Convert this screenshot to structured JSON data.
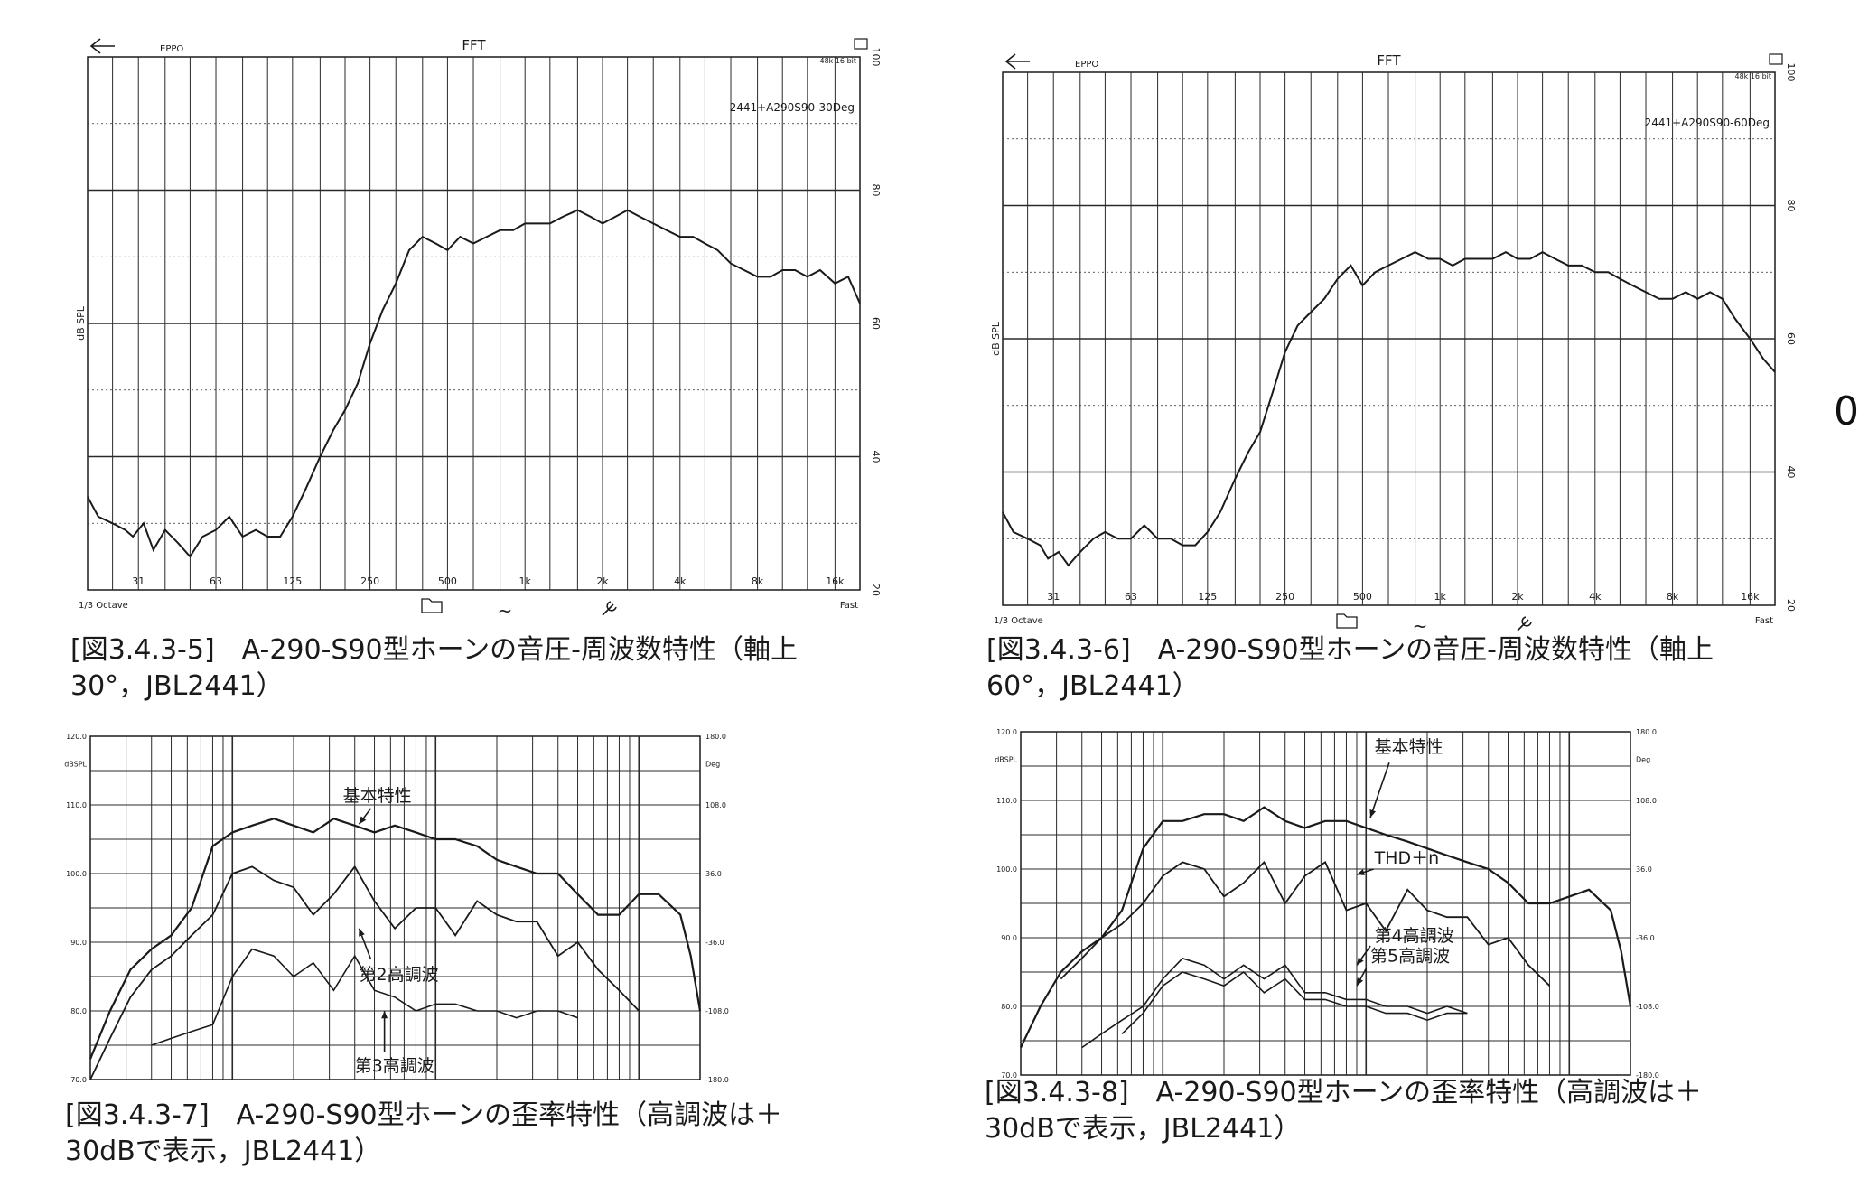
{
  "colors": {
    "ink": "#1a1a1a",
    "paper": "#ffffff",
    "grid": "#2a2a2a"
  },
  "edge_mark": "0",
  "icons": [
    "back-arrow-icon",
    "folder-icon",
    "tilde-icon",
    "wrench-icon",
    "window-icon"
  ],
  "fft": {
    "title": "FFT",
    "brand": "EPPO",
    "ylabel": "dB SPL",
    "sample_rate": "48k 16 bit",
    "octave_label": "1/3 Octave",
    "speed_label": "Fast",
    "tilde": "~",
    "x_ticks": [
      "31",
      "63",
      "125",
      "250",
      "500",
      "1k",
      "2k",
      "4k",
      "8k",
      "16k"
    ],
    "y_ticks": [
      "100",
      "80",
      "60",
      "40",
      "20"
    ]
  },
  "dist": {
    "left_ticks": [
      "120.0",
      "110.0",
      "100.0",
      "90.0",
      "80.0",
      "70.0"
    ],
    "left_unit": "dBSPL",
    "right_ticks": [
      "180.0",
      "108.0",
      "36.0",
      "-36.0",
      "-108.0",
      "-180.0"
    ],
    "right_unit": "Deg"
  },
  "fig5": {
    "curve_label": "2441+A290S90-30Deg",
    "caption": "[図3.4.3-5]　A-290-S90型ホーンの音圧-周波数特性（軸上\n30°，JBL2441）"
  },
  "fig6": {
    "curve_label": "2441+A290S90-60Deg",
    "caption": "[図3.4.3-6]　A-290-S90型ホーンの音圧-周波数特性（軸上\n60°，JBL2441）"
  },
  "fig7": {
    "annotations": [
      "基本特性",
      "第2高調波",
      "第3高調波"
    ],
    "caption": "[図3.4.3-7]　A-290-S90型ホーンの歪率特性（高調波は＋\n30dBで表示，JBL2441）"
  },
  "fig8": {
    "annotations": [
      "基本特性",
      "THD＋n",
      "第4高調波",
      "第5高調波"
    ],
    "caption": "[図3.4.3-8]　A-290-S90型ホーンの歪率特性（高調波は＋\n30dBで表示，JBL2441）"
  },
  "chart_data": [
    {
      "id": "fig5",
      "type": "line",
      "title": "FFT",
      "ylabel": "dB SPL",
      "xscale": "log",
      "xlim": [
        20,
        20000
      ],
      "ylim": [
        20,
        100
      ],
      "series": [
        {
          "name": "2441+A290S90-30Deg",
          "x": [
            20,
            22,
            25,
            28,
            30,
            33,
            36,
            40,
            45,
            50,
            56,
            63,
            71,
            80,
            90,
            100,
            112,
            125,
            140,
            160,
            180,
            200,
            224,
            250,
            280,
            315,
            355,
            400,
            450,
            500,
            560,
            630,
            710,
            800,
            900,
            1000,
            1120,
            1250,
            1400,
            1600,
            1800,
            2000,
            2240,
            2500,
            2800,
            3150,
            3550,
            4000,
            4500,
            5000,
            5600,
            6300,
            7100,
            8000,
            9000,
            10000,
            11200,
            12500,
            14000,
            16000,
            18000,
            20000
          ],
          "values": [
            34,
            31,
            30,
            29,
            28,
            30,
            26,
            29,
            27,
            25,
            28,
            29,
            31,
            28,
            29,
            28,
            28,
            31,
            35,
            40,
            44,
            47,
            51,
            57,
            62,
            66,
            71,
            73,
            72,
            71,
            73,
            72,
            73,
            74,
            74,
            75,
            75,
            75,
            76,
            77,
            76,
            75,
            76,
            77,
            76,
            75,
            74,
            73,
            73,
            72,
            71,
            69,
            68,
            67,
            67,
            68,
            68,
            67,
            68,
            66,
            67,
            63
          ]
        }
      ]
    },
    {
      "id": "fig6",
      "type": "line",
      "title": "FFT",
      "ylabel": "dB SPL",
      "xscale": "log",
      "xlim": [
        20,
        20000
      ],
      "ylim": [
        20,
        100
      ],
      "series": [
        {
          "name": "2441+A290S90-60Deg",
          "x": [
            20,
            22,
            25,
            28,
            30,
            33,
            36,
            40,
            45,
            50,
            56,
            63,
            71,
            80,
            90,
            100,
            112,
            125,
            140,
            160,
            180,
            200,
            224,
            250,
            280,
            315,
            355,
            400,
            450,
            500,
            560,
            630,
            710,
            800,
            900,
            1000,
            1120,
            1250,
            1400,
            1600,
            1800,
            2000,
            2240,
            2500,
            2800,
            3150,
            3550,
            4000,
            4500,
            5000,
            5600,
            6300,
            7100,
            8000,
            9000,
            10000,
            11200,
            12500,
            14000,
            16000,
            18000,
            20000
          ],
          "values": [
            34,
            31,
            30,
            29,
            27,
            28,
            26,
            28,
            30,
            31,
            30,
            30,
            32,
            30,
            30,
            29,
            29,
            31,
            34,
            39,
            43,
            46,
            52,
            58,
            62,
            64,
            66,
            69,
            71,
            68,
            70,
            71,
            72,
            73,
            72,
            72,
            71,
            72,
            72,
            72,
            73,
            72,
            72,
            73,
            72,
            71,
            71,
            70,
            70,
            69,
            68,
            67,
            66,
            66,
            67,
            66,
            67,
            66,
            63,
            60,
            57,
            55
          ]
        }
      ]
    },
    {
      "id": "fig7",
      "type": "line",
      "ylabel": "dBSPL",
      "y2label": "Deg",
      "xscale": "log",
      "ylim": [
        70,
        120
      ],
      "series": [
        {
          "name": "基本特性",
          "x": [
            20,
            25,
            31.5,
            40,
            50,
            63,
            80,
            100,
            125,
            160,
            200,
            250,
            315,
            400,
            500,
            630,
            800,
            1000,
            1250,
            1600,
            2000,
            2500,
            3150,
            4000,
            5000,
            6300,
            8000,
            10000,
            12500,
            16000,
            18000,
            20000
          ],
          "values": [
            73,
            80,
            86,
            89,
            91,
            95,
            104,
            106,
            107,
            108,
            107,
            106,
            108,
            107,
            106,
            107,
            106,
            105,
            105,
            104,
            102,
            101,
            100,
            100,
            97,
            94,
            94,
            97,
            97,
            94,
            88,
            80
          ]
        },
        {
          "name": "第2高調波",
          "x": [
            20,
            25,
            31.5,
            40,
            50,
            63,
            80,
            100,
            125,
            160,
            200,
            250,
            315,
            400,
            500,
            630,
            800,
            1000,
            1250,
            1600,
            2000,
            2500,
            3150,
            4000,
            5000,
            6300,
            8000,
            10000
          ],
          "values": [
            70,
            76,
            82,
            86,
            88,
            91,
            94,
            100,
            101,
            99,
            98,
            94,
            97,
            101,
            96,
            92,
            95,
            95,
            91,
            96,
            94,
            93,
            93,
            88,
            90,
            86,
            83,
            80
          ]
        },
        {
          "name": "第3高調波",
          "x": [
            40,
            50,
            63,
            80,
            100,
            125,
            160,
            200,
            250,
            315,
            400,
            500,
            630,
            800,
            1000,
            1250,
            1600,
            2000,
            2500,
            3150,
            4000,
            5000
          ],
          "values": [
            75,
            76,
            77,
            78,
            85,
            89,
            88,
            85,
            87,
            83,
            88,
            83,
            82,
            80,
            81,
            81,
            80,
            80,
            79,
            80,
            80,
            79
          ]
        }
      ]
    },
    {
      "id": "fig8",
      "type": "line",
      "ylabel": "dBSPL",
      "y2label": "Deg",
      "xscale": "log",
      "ylim": [
        70,
        120
      ],
      "series": [
        {
          "name": "基本特性",
          "x": [
            20,
            25,
            31.5,
            40,
            50,
            63,
            80,
            100,
            125,
            160,
            200,
            250,
            315,
            400,
            500,
            630,
            800,
            1000,
            1250,
            1600,
            2000,
            2500,
            3150,
            4000,
            5000,
            6300,
            8000,
            10000,
            12500,
            16000,
            18000,
            20000
          ],
          "values": [
            74,
            80,
            85,
            88,
            90,
            94,
            103,
            107,
            107,
            108,
            108,
            107,
            109,
            107,
            106,
            107,
            107,
            106,
            105,
            104,
            103,
            102,
            101,
            100,
            98,
            95,
            95,
            96,
            97,
            94,
            88,
            80
          ]
        },
        {
          "name": "THD＋n",
          "x": [
            31.5,
            40,
            50,
            63,
            80,
            100,
            125,
            160,
            200,
            250,
            315,
            400,
            500,
            630,
            800,
            1000,
            1250,
            1600,
            2000,
            2500,
            3150,
            4000,
            5000,
            6300,
            8000
          ],
          "values": [
            84,
            87,
            90,
            92,
            95,
            99,
            101,
            100,
            96,
            98,
            101,
            95,
            99,
            101,
            94,
            95,
            91,
            97,
            94,
            93,
            93,
            89,
            90,
            86,
            83
          ]
        },
        {
          "name": "第4高調波",
          "x": [
            40,
            50,
            63,
            80,
            100,
            125,
            160,
            200,
            250,
            315,
            400,
            500,
            630,
            800,
            1000,
            1250,
            1600,
            2000,
            2500,
            3150
          ],
          "values": [
            74,
            76,
            78,
            80,
            84,
            87,
            86,
            84,
            86,
            84,
            86,
            82,
            82,
            81,
            81,
            80,
            80,
            79,
            80,
            79
          ]
        },
        {
          "name": "第5高調波",
          "x": [
            63,
            80,
            100,
            125,
            160,
            200,
            250,
            315,
            400,
            500,
            630,
            800,
            1000,
            1250,
            1600,
            2000,
            2500,
            3150
          ],
          "values": [
            76,
            79,
            83,
            85,
            84,
            83,
            85,
            82,
            84,
            81,
            81,
            80,
            80,
            79,
            79,
            78,
            79,
            79
          ]
        }
      ]
    }
  ]
}
